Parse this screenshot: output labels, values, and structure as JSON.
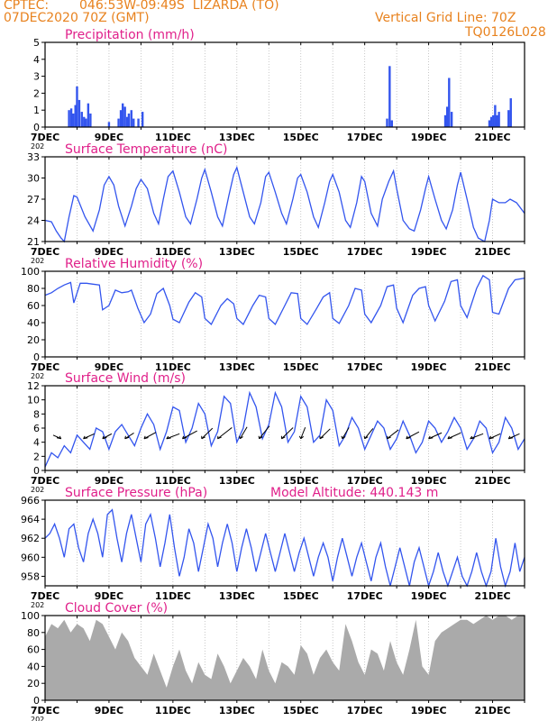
{
  "header": {
    "source": "CPTEC:",
    "location": "046:53W-09:49S  LIZARDA (TO)",
    "run": "07DEC2020 70Z (GMT)",
    "grid_note": "Vertical Grid Line: 70Z",
    "code": "TQ0126L028"
  },
  "colors": {
    "header_text": "#e8821e",
    "panel_title": "#e0208a",
    "series_line": "#3355ee",
    "cloud_fill": "#aaaaaa",
    "grid": "#bbbbbb"
  },
  "x_axis": {
    "start": "7DEC",
    "end": "22DEC",
    "tick_labels": [
      "7DEC",
      "9DEC",
      "11DEC",
      "13DEC",
      "15DEC",
      "17DEC",
      "19DEC",
      "21DEC"
    ],
    "year_fragment": "202"
  },
  "chart_data": [
    {
      "type": "bar",
      "title": "Precipitation (mm/h)",
      "ylim": [
        0,
        5
      ],
      "yticks": [
        0,
        1,
        2,
        3,
        4,
        5
      ],
      "bars": [
        {
          "day": 0.75,
          "value": 1.0
        },
        {
          "day": 0.82,
          "value": 1.1
        },
        {
          "day": 0.88,
          "value": 0.8
        },
        {
          "day": 0.95,
          "value": 1.3
        },
        {
          "day": 1.0,
          "value": 2.4
        },
        {
          "day": 1.07,
          "value": 1.6
        },
        {
          "day": 1.15,
          "value": 0.9
        },
        {
          "day": 1.22,
          "value": 0.6
        },
        {
          "day": 1.28,
          "value": 0.5
        },
        {
          "day": 1.35,
          "value": 1.4
        },
        {
          "day": 1.42,
          "value": 0.8
        },
        {
          "day": 2.0,
          "value": 0.3
        },
        {
          "day": 2.3,
          "value": 0.5
        },
        {
          "day": 2.37,
          "value": 1.0
        },
        {
          "day": 2.43,
          "value": 1.4
        },
        {
          "day": 2.5,
          "value": 1.2
        },
        {
          "day": 2.57,
          "value": 0.6
        },
        {
          "day": 2.62,
          "value": 0.8
        },
        {
          "day": 2.7,
          "value": 1.0
        },
        {
          "day": 2.77,
          "value": 0.5
        },
        {
          "day": 2.92,
          "value": 0.5
        },
        {
          "day": 3.05,
          "value": 0.9
        },
        {
          "day": 10.7,
          "value": 0.5
        },
        {
          "day": 10.78,
          "value": 3.6
        },
        {
          "day": 10.85,
          "value": 0.4
        },
        {
          "day": 12.52,
          "value": 0.7
        },
        {
          "day": 12.58,
          "value": 1.2
        },
        {
          "day": 12.64,
          "value": 2.9
        },
        {
          "day": 12.72,
          "value": 0.9
        },
        {
          "day": 13.9,
          "value": 0.4
        },
        {
          "day": 13.96,
          "value": 0.6
        },
        {
          "day": 14.02,
          "value": 0.7
        },
        {
          "day": 14.08,
          "value": 1.3
        },
        {
          "day": 14.14,
          "value": 0.7
        },
        {
          "day": 14.2,
          "value": 0.9
        },
        {
          "day": 14.5,
          "value": 1.0
        },
        {
          "day": 14.57,
          "value": 1.7
        }
      ]
    },
    {
      "type": "line",
      "title": "Surface Temperature (nC)",
      "ylim": [
        21,
        33
      ],
      "yticks": [
        21,
        24,
        27,
        30,
        33
      ],
      "x": [
        0,
        0.2,
        0.35,
        0.5,
        0.6,
        0.75,
        0.9,
        1.0,
        1.25,
        1.5,
        1.7,
        1.85,
        2.0,
        2.15,
        2.3,
        2.5,
        2.7,
        2.85,
        3.0,
        3.2,
        3.4,
        3.55,
        3.7,
        3.85,
        4.0,
        4.2,
        4.4,
        4.55,
        4.75,
        4.9,
        5.0,
        5.2,
        5.4,
        5.55,
        5.75,
        5.9,
        6.0,
        6.2,
        6.4,
        6.55,
        6.75,
        6.9,
        7.0,
        7.2,
        7.4,
        7.55,
        7.75,
        7.9,
        8.0,
        8.2,
        8.4,
        8.55,
        8.75,
        8.9,
        9.0,
        9.2,
        9.4,
        9.55,
        9.75,
        9.9,
        10.0,
        10.2,
        10.4,
        10.55,
        10.75,
        10.9,
        11.0,
        11.2,
        11.4,
        11.55,
        11.75,
        11.9,
        12.0,
        12.2,
        12.4,
        12.55,
        12.75,
        12.9,
        13.0,
        13.2,
        13.4,
        13.55,
        13.75,
        13.9,
        14.0,
        14.2,
        14.4,
        14.55,
        14.75,
        15.0
      ],
      "y": [
        24,
        23.8,
        22.5,
        21.5,
        21.0,
        24.5,
        27.5,
        27.3,
        24.5,
        22.5,
        25.5,
        29.0,
        30.2,
        29.0,
        26.0,
        23.2,
        26.0,
        28.5,
        29.8,
        28.5,
        25.0,
        23.5,
        27.0,
        30.2,
        31.0,
        28.0,
        24.5,
        23.5,
        27.0,
        30.0,
        31.2,
        28.0,
        24.5,
        23.2,
        27.5,
        30.5,
        31.5,
        28.0,
        24.5,
        23.5,
        26.5,
        30.2,
        30.8,
        28.0,
        25.0,
        23.5,
        27.0,
        30.0,
        30.5,
        28.0,
        24.5,
        23.0,
        26.5,
        29.5,
        30.5,
        28.0,
        24.0,
        23.0,
        26.5,
        30.2,
        29.5,
        25.0,
        23.2,
        27.0,
        29.5,
        31.0,
        28.5,
        24.0,
        22.8,
        22.5,
        25.5,
        28.5,
        30.2,
        27.0,
        24.0,
        22.8,
        25.5,
        29.0,
        30.8,
        27.0,
        23.0,
        21.5,
        20.8,
        24.0,
        27.0,
        26.5,
        26.5,
        27.0,
        26.5,
        25.0
      ]
    },
    {
      "type": "line",
      "title": "Relative Humidity (%)",
      "ylim": [
        0,
        100
      ],
      "yticks": [
        0,
        20,
        40,
        60,
        80,
        100
      ],
      "x": [
        0,
        0.2,
        0.4,
        0.6,
        0.8,
        0.9,
        1.1,
        1.3,
        1.5,
        1.7,
        1.8,
        2.0,
        2.2,
        2.4,
        2.6,
        2.7,
        2.9,
        3.1,
        3.3,
        3.5,
        3.7,
        3.9,
        4.0,
        4.2,
        4.5,
        4.7,
        4.9,
        5.0,
        5.2,
        5.5,
        5.7,
        5.9,
        6.0,
        6.2,
        6.5,
        6.7,
        6.9,
        7.0,
        7.2,
        7.5,
        7.7,
        7.9,
        8.0,
        8.2,
        8.5,
        8.7,
        8.9,
        9.0,
        9.2,
        9.5,
        9.7,
        9.9,
        10.0,
        10.2,
        10.5,
        10.7,
        10.9,
        11.0,
        11.2,
        11.5,
        11.7,
        11.9,
        12.0,
        12.2,
        12.5,
        12.7,
        12.9,
        13.0,
        13.2,
        13.5,
        13.7,
        13.9,
        14.0,
        14.2,
        14.5,
        14.7,
        15.0
      ],
      "y": [
        72,
        75,
        80,
        84,
        87,
        63,
        86,
        86,
        85,
        84,
        55,
        60,
        78,
        75,
        76,
        78,
        57,
        40,
        50,
        74,
        80,
        60,
        44,
        40,
        64,
        75,
        70,
        45,
        38,
        60,
        68,
        62,
        45,
        38,
        60,
        72,
        70,
        45,
        38,
        60,
        75,
        74,
        45,
        38,
        57,
        70,
        75,
        45,
        39,
        60,
        80,
        78,
        50,
        40,
        60,
        82,
        84,
        57,
        40,
        72,
        80,
        82,
        60,
        42,
        65,
        88,
        90,
        60,
        46,
        80,
        95,
        90,
        52,
        50,
        80,
        90,
        92
      ]
    },
    {
      "type": "line",
      "title": "Surface Wind (m/s)",
      "ylim": [
        0,
        12
      ],
      "yticks": [
        0,
        2,
        4,
        6,
        8,
        10,
        12
      ],
      "x": [
        0,
        0.2,
        0.4,
        0.6,
        0.8,
        1.0,
        1.2,
        1.4,
        1.6,
        1.8,
        2.0,
        2.2,
        2.4,
        2.6,
        2.8,
        3.0,
        3.2,
        3.4,
        3.6,
        3.8,
        4.0,
        4.2,
        4.4,
        4.6,
        4.8,
        5.0,
        5.2,
        5.4,
        5.6,
        5.8,
        6.0,
        6.2,
        6.4,
        6.6,
        6.8,
        7.0,
        7.2,
        7.4,
        7.6,
        7.8,
        8.0,
        8.2,
        8.4,
        8.6,
        8.8,
        9.0,
        9.2,
        9.4,
        9.6,
        9.8,
        10.0,
        10.2,
        10.4,
        10.6,
        10.8,
        11.0,
        11.2,
        11.4,
        11.6,
        11.8,
        12.0,
        12.2,
        12.4,
        12.6,
        12.8,
        13.0,
        13.2,
        13.4,
        13.6,
        13.8,
        14.0,
        14.2,
        14.4,
        14.6,
        14.8,
        15.0
      ],
      "y": [
        0.5,
        2.5,
        1.8,
        3.5,
        2.5,
        5.0,
        4.0,
        3.0,
        6.0,
        5.5,
        3.0,
        5.5,
        6.5,
        5.0,
        3.5,
        6.0,
        8.0,
        6.5,
        3.0,
        5.5,
        9.0,
        8.5,
        4.0,
        6.0,
        9.5,
        8.0,
        3.5,
        5.5,
        10.5,
        9.5,
        4.0,
        6.0,
        11.0,
        9.0,
        4.5,
        6.5,
        11.0,
        9.0,
        4.0,
        5.5,
        10.5,
        9.0,
        4.0,
        5.0,
        10.0,
        8.5,
        3.5,
        5.0,
        7.5,
        6.0,
        3.0,
        5.0,
        7.0,
        6.0,
        3.0,
        4.5,
        7.0,
        5.0,
        2.5,
        4.0,
        7.0,
        6.0,
        4.0,
        5.5,
        7.5,
        6.0,
        3.0,
        4.5,
        7.0,
        6.0,
        2.5,
        4.0,
        7.5,
        6.0,
        3.0,
        4.5
      ],
      "barbs": [
        {
          "day": 0.5,
          "dir_deg": 135,
          "speed": 2.0
        },
        {
          "day": 1.2,
          "dir_deg": 45,
          "speed": 3.5
        },
        {
          "day": 1.8,
          "dir_deg": 50,
          "speed": 3.0
        },
        {
          "day": 2.5,
          "dir_deg": 55,
          "speed": 3.5
        },
        {
          "day": 3.1,
          "dir_deg": 50,
          "speed": 4.5
        },
        {
          "day": 3.8,
          "dir_deg": 40,
          "speed": 4.0
        },
        {
          "day": 4.3,
          "dir_deg": 50,
          "speed": 6.0
        },
        {
          "day": 4.9,
          "dir_deg": 65,
          "speed": 7.0
        },
        {
          "day": 5.4,
          "dir_deg": 60,
          "speed": 8.0
        },
        {
          "day": 6.1,
          "dir_deg": 75,
          "speed": 7.5
        },
        {
          "day": 6.7,
          "dir_deg": 70,
          "speed": 8.5
        },
        {
          "day": 7.4,
          "dir_deg": 65,
          "speed": 7.5
        },
        {
          "day": 8.0,
          "dir_deg": 80,
          "speed": 7.0
        },
        {
          "day": 8.6,
          "dir_deg": 65,
          "speed": 6.5
        },
        {
          "day": 9.3,
          "dir_deg": 75,
          "speed": 7.0
        },
        {
          "day": 10.0,
          "dir_deg": 70,
          "speed": 6.5
        },
        {
          "day": 10.7,
          "dir_deg": 60,
          "speed": 6.0
        },
        {
          "day": 11.3,
          "dir_deg": 50,
          "speed": 5.0
        },
        {
          "day": 12.0,
          "dir_deg": 45,
          "speed": 4.5
        },
        {
          "day": 12.6,
          "dir_deg": 45,
          "speed": 4.5
        },
        {
          "day": 13.3,
          "dir_deg": 40,
          "speed": 4.0
        },
        {
          "day": 13.9,
          "dir_deg": 45,
          "speed": 3.5
        },
        {
          "day": 14.5,
          "dir_deg": 45,
          "speed": 3.5
        }
      ]
    },
    {
      "type": "line",
      "title": "Surface Pressure (hPa)",
      "note": "Model Altitude: 440.143 m",
      "ylim": [
        957,
        966
      ],
      "yticks": [
        958,
        960,
        962,
        964,
        966
      ],
      "x": [
        0,
        0.15,
        0.3,
        0.45,
        0.6,
        0.75,
        0.9,
        1.05,
        1.2,
        1.35,
        1.5,
        1.65,
        1.8,
        1.95,
        2.1,
        2.25,
        2.4,
        2.55,
        2.7,
        2.85,
        3.0,
        3.15,
        3.3,
        3.45,
        3.6,
        3.75,
        3.9,
        4.05,
        4.2,
        4.35,
        4.5,
        4.65,
        4.8,
        4.95,
        5.1,
        5.25,
        5.4,
        5.55,
        5.7,
        5.85,
        6.0,
        6.15,
        6.3,
        6.45,
        6.6,
        6.75,
        6.9,
        7.05,
        7.2,
        7.35,
        7.5,
        7.65,
        7.8,
        7.95,
        8.1,
        8.25,
        8.4,
        8.55,
        8.7,
        8.85,
        9.0,
        9.15,
        9.3,
        9.45,
        9.6,
        9.75,
        9.9,
        10.05,
        10.2,
        10.35,
        10.5,
        10.65,
        10.8,
        10.95,
        11.1,
        11.25,
        11.4,
        11.55,
        11.7,
        11.85,
        12.0,
        12.15,
        12.3,
        12.45,
        12.6,
        12.75,
        12.9,
        13.05,
        13.2,
        13.35,
        13.5,
        13.65,
        13.8,
        13.95,
        14.1,
        14.25,
        14.4,
        14.55,
        14.7,
        14.85,
        15.0
      ],
      "y": [
        962,
        962.5,
        963.5,
        962,
        960,
        963,
        963.5,
        961,
        959.5,
        962.5,
        964,
        962.5,
        960,
        964.5,
        965,
        962,
        959.5,
        962.5,
        964.5,
        962,
        959.5,
        963.5,
        964.5,
        962,
        959,
        961.5,
        964.5,
        961,
        958,
        960,
        963,
        961.5,
        958.5,
        961,
        963.5,
        962,
        959,
        961.5,
        963.5,
        961.5,
        958.5,
        961,
        963,
        961,
        958.5,
        960.5,
        962.5,
        960.5,
        958.5,
        960.5,
        962.5,
        960.5,
        958.5,
        960.5,
        962,
        960,
        958,
        960,
        961.5,
        960,
        957.5,
        960,
        962,
        960,
        958,
        960,
        961.5,
        959.5,
        957.5,
        960,
        961.5,
        959,
        957,
        959,
        961,
        959,
        957,
        959.5,
        961,
        959,
        957,
        958.5,
        960.5,
        958.5,
        956.5,
        958.5,
        960,
        958,
        956.5,
        958.5,
        960.5,
        958.5,
        956.5,
        958.5,
        962,
        959,
        956.5,
        958.5,
        961.5,
        958.5,
        960
      ]
    },
    {
      "type": "area",
      "title": "Cloud Cover (%)",
      "ylim": [
        0,
        100
      ],
      "yticks": [
        0,
        20,
        40,
        60,
        80,
        100
      ],
      "x": [
        0,
        0.2,
        0.4,
        0.6,
        0.8,
        1.0,
        1.2,
        1.4,
        1.6,
        1.8,
        2.0,
        2.2,
        2.4,
        2.6,
        2.8,
        3.0,
        3.2,
        3.4,
        3.6,
        3.8,
        4.0,
        4.2,
        4.4,
        4.6,
        4.8,
        5.0,
        5.2,
        5.4,
        5.6,
        5.8,
        6.0,
        6.2,
        6.4,
        6.6,
        6.8,
        7.0,
        7.2,
        7.4,
        7.6,
        7.8,
        8.0,
        8.2,
        8.4,
        8.6,
        8.8,
        9.0,
        9.2,
        9.4,
        9.6,
        9.8,
        10.0,
        10.2,
        10.4,
        10.6,
        10.8,
        11.0,
        11.2,
        11.4,
        11.6,
        11.8,
        12.0,
        12.2,
        12.4,
        12.6,
        12.8,
        13.0,
        13.2,
        13.4,
        13.6,
        13.8,
        14.0,
        14.2,
        14.4,
        14.6,
        14.8,
        15.0
      ],
      "y": [
        75,
        90,
        85,
        95,
        80,
        90,
        85,
        70,
        95,
        90,
        75,
        60,
        80,
        70,
        50,
        40,
        30,
        55,
        35,
        15,
        40,
        60,
        35,
        20,
        45,
        30,
        25,
        55,
        40,
        20,
        35,
        50,
        40,
        25,
        60,
        35,
        20,
        45,
        40,
        30,
        65,
        55,
        30,
        50,
        60,
        45,
        35,
        90,
        70,
        45,
        30,
        60,
        55,
        35,
        70,
        45,
        30,
        60,
        95,
        40,
        30,
        70,
        80,
        85,
        90,
        95,
        95,
        90,
        95,
        100,
        95,
        100,
        100,
        95,
        100,
        100
      ]
    }
  ]
}
